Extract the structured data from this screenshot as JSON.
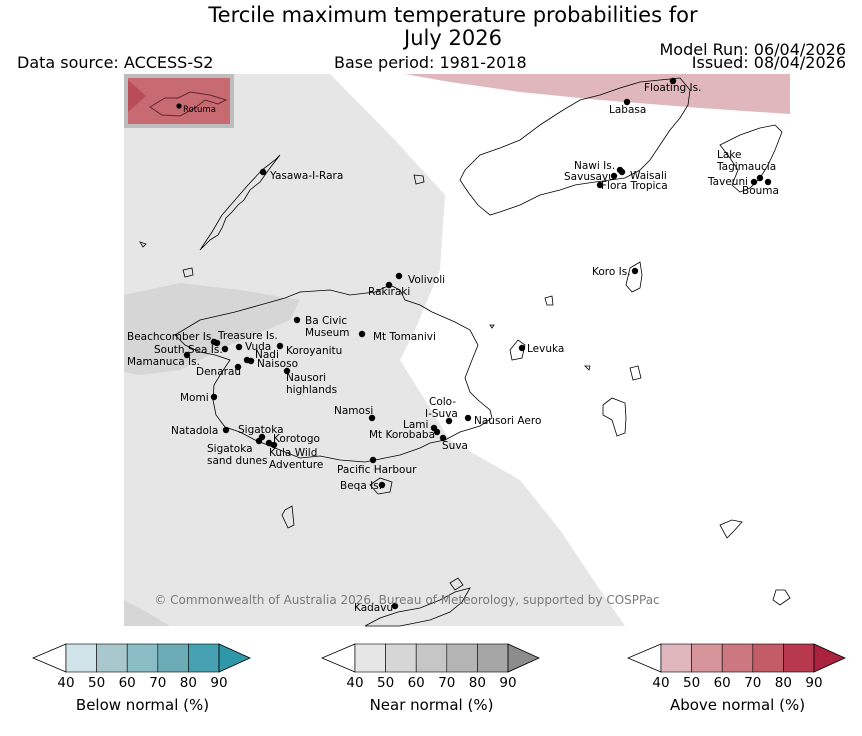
{
  "header": {
    "title_line1": "Tercile maximum temperature probabilities for",
    "title_line2": "July 2026",
    "data_source": "Data source: ACCESS-S2",
    "base_period": "Base period: 1981-2018",
    "model_run": "Model Run: 06/04/2026",
    "issued": "Issued: 08/04/2026"
  },
  "inset_label": "Rotuma",
  "copyright": "© Commonwealth of Australia 2026, Bureau of Meteorology, supported by COSPPac",
  "places": [
    {
      "name": "Floating Is."
    },
    {
      "name": "Labasa"
    },
    {
      "name": "Yasawa-I-Rara"
    },
    {
      "name": "Nawi Is."
    },
    {
      "name": "Savusavu"
    },
    {
      "name": "Waisali"
    },
    {
      "name": "Flora Tropica"
    },
    {
      "name": "Lake Tagimaucia"
    },
    {
      "name": "Taveuni"
    },
    {
      "name": "Bouma"
    },
    {
      "name": "Koro Is."
    },
    {
      "name": "Volivoli"
    },
    {
      "name": "Rakiraki"
    },
    {
      "name": "Ba Civic Museum"
    },
    {
      "name": "Mt Tomanivi"
    },
    {
      "name": "Beachcomber Is."
    },
    {
      "name": "Treasure Is."
    },
    {
      "name": "South Sea Is."
    },
    {
      "name": "Vuda"
    },
    {
      "name": "Nadi"
    },
    {
      "name": "Koroyanitu"
    },
    {
      "name": "Mamanuca Is."
    },
    {
      "name": "Naisoso"
    },
    {
      "name": "Denarau"
    },
    {
      "name": "Levuka"
    },
    {
      "name": "Nausori highlands"
    },
    {
      "name": "Momi"
    },
    {
      "name": "Namosi"
    },
    {
      "name": "Colo-I-Suva"
    },
    {
      "name": "Lami"
    },
    {
      "name": "Nausori Aero"
    },
    {
      "name": "Natadola"
    },
    {
      "name": "Sigatoka"
    },
    {
      "name": "Mt Korobaba"
    },
    {
      "name": "Korotogo"
    },
    {
      "name": "Suva"
    },
    {
      "name": "Sigatoka sand dunes"
    },
    {
      "name": "Kula Wild Adventure"
    },
    {
      "name": "Pacific Harbour"
    },
    {
      "name": "Beqa Is."
    },
    {
      "name": "Kadavu"
    }
  ],
  "colorbars": [
    {
      "label": "Below normal (%)",
      "ticks": [
        "40",
        "50",
        "60",
        "70",
        "80",
        "90"
      ],
      "colors": [
        "#cfe3e8",
        "#a9c8ce",
        "#8abcc4",
        "#6aabb6",
        "#45a1b1",
        "#2e98a8"
      ]
    },
    {
      "label": "Near normal (%)",
      "ticks": [
        "40",
        "50",
        "60",
        "70",
        "80",
        "90"
      ],
      "colors": [
        "#e6e6e6",
        "#d6d6d6",
        "#c6c6c6",
        "#b4b4b4",
        "#a6a6a6",
        "#8c8c8c"
      ]
    },
    {
      "label": "Above normal (%)",
      "ticks": [
        "40",
        "50",
        "60",
        "70",
        "80",
        "90"
      ],
      "colors": [
        "#e0b7bc",
        "#d6949b",
        "#cd7880",
        "#c45c67",
        "#b8394d",
        "#a9223f"
      ]
    }
  ]
}
